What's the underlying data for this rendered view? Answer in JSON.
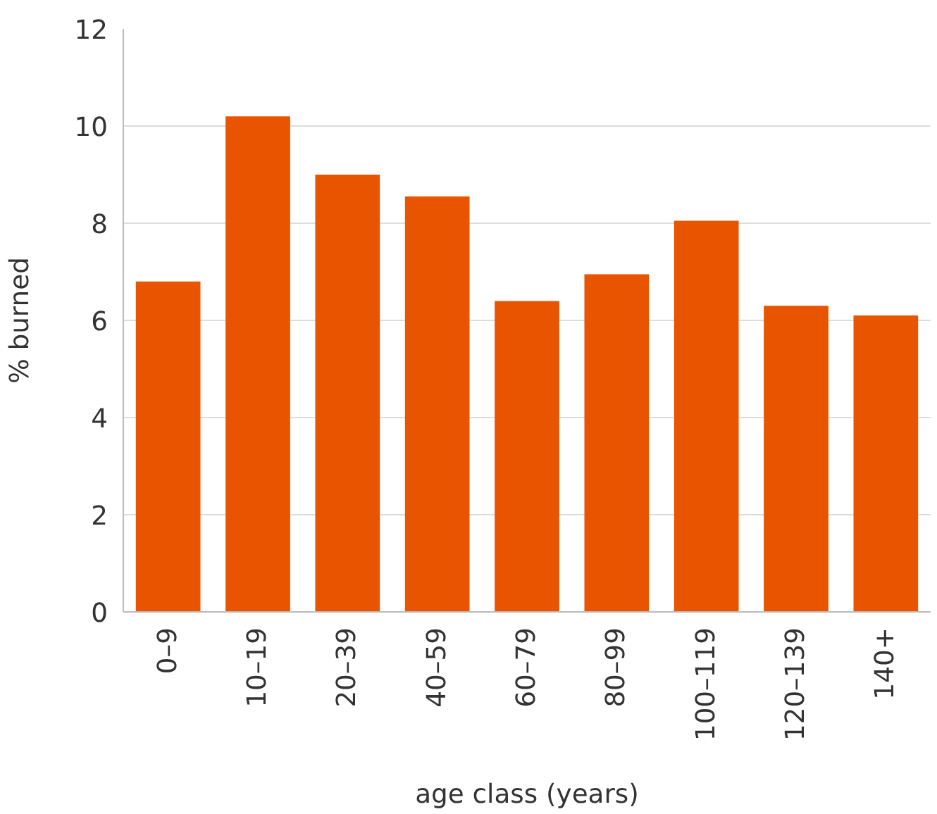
{
  "chart_data": {
    "type": "bar",
    "xlabel": "age class (years)",
    "ylabel": "% burned",
    "categories": [
      "0–9",
      "10–19",
      "20–39",
      "40–59",
      "60–79",
      "80–99",
      "100–119",
      "120–139",
      "140+"
    ],
    "values": [
      6.8,
      10.2,
      9.0,
      8.55,
      6.4,
      6.95,
      8.05,
      6.3,
      6.1
    ],
    "color": "#e85400",
    "ylim": [
      0,
      12
    ],
    "yticks": [
      0,
      2,
      4,
      6,
      8,
      10,
      12
    ],
    "grid": "y"
  }
}
